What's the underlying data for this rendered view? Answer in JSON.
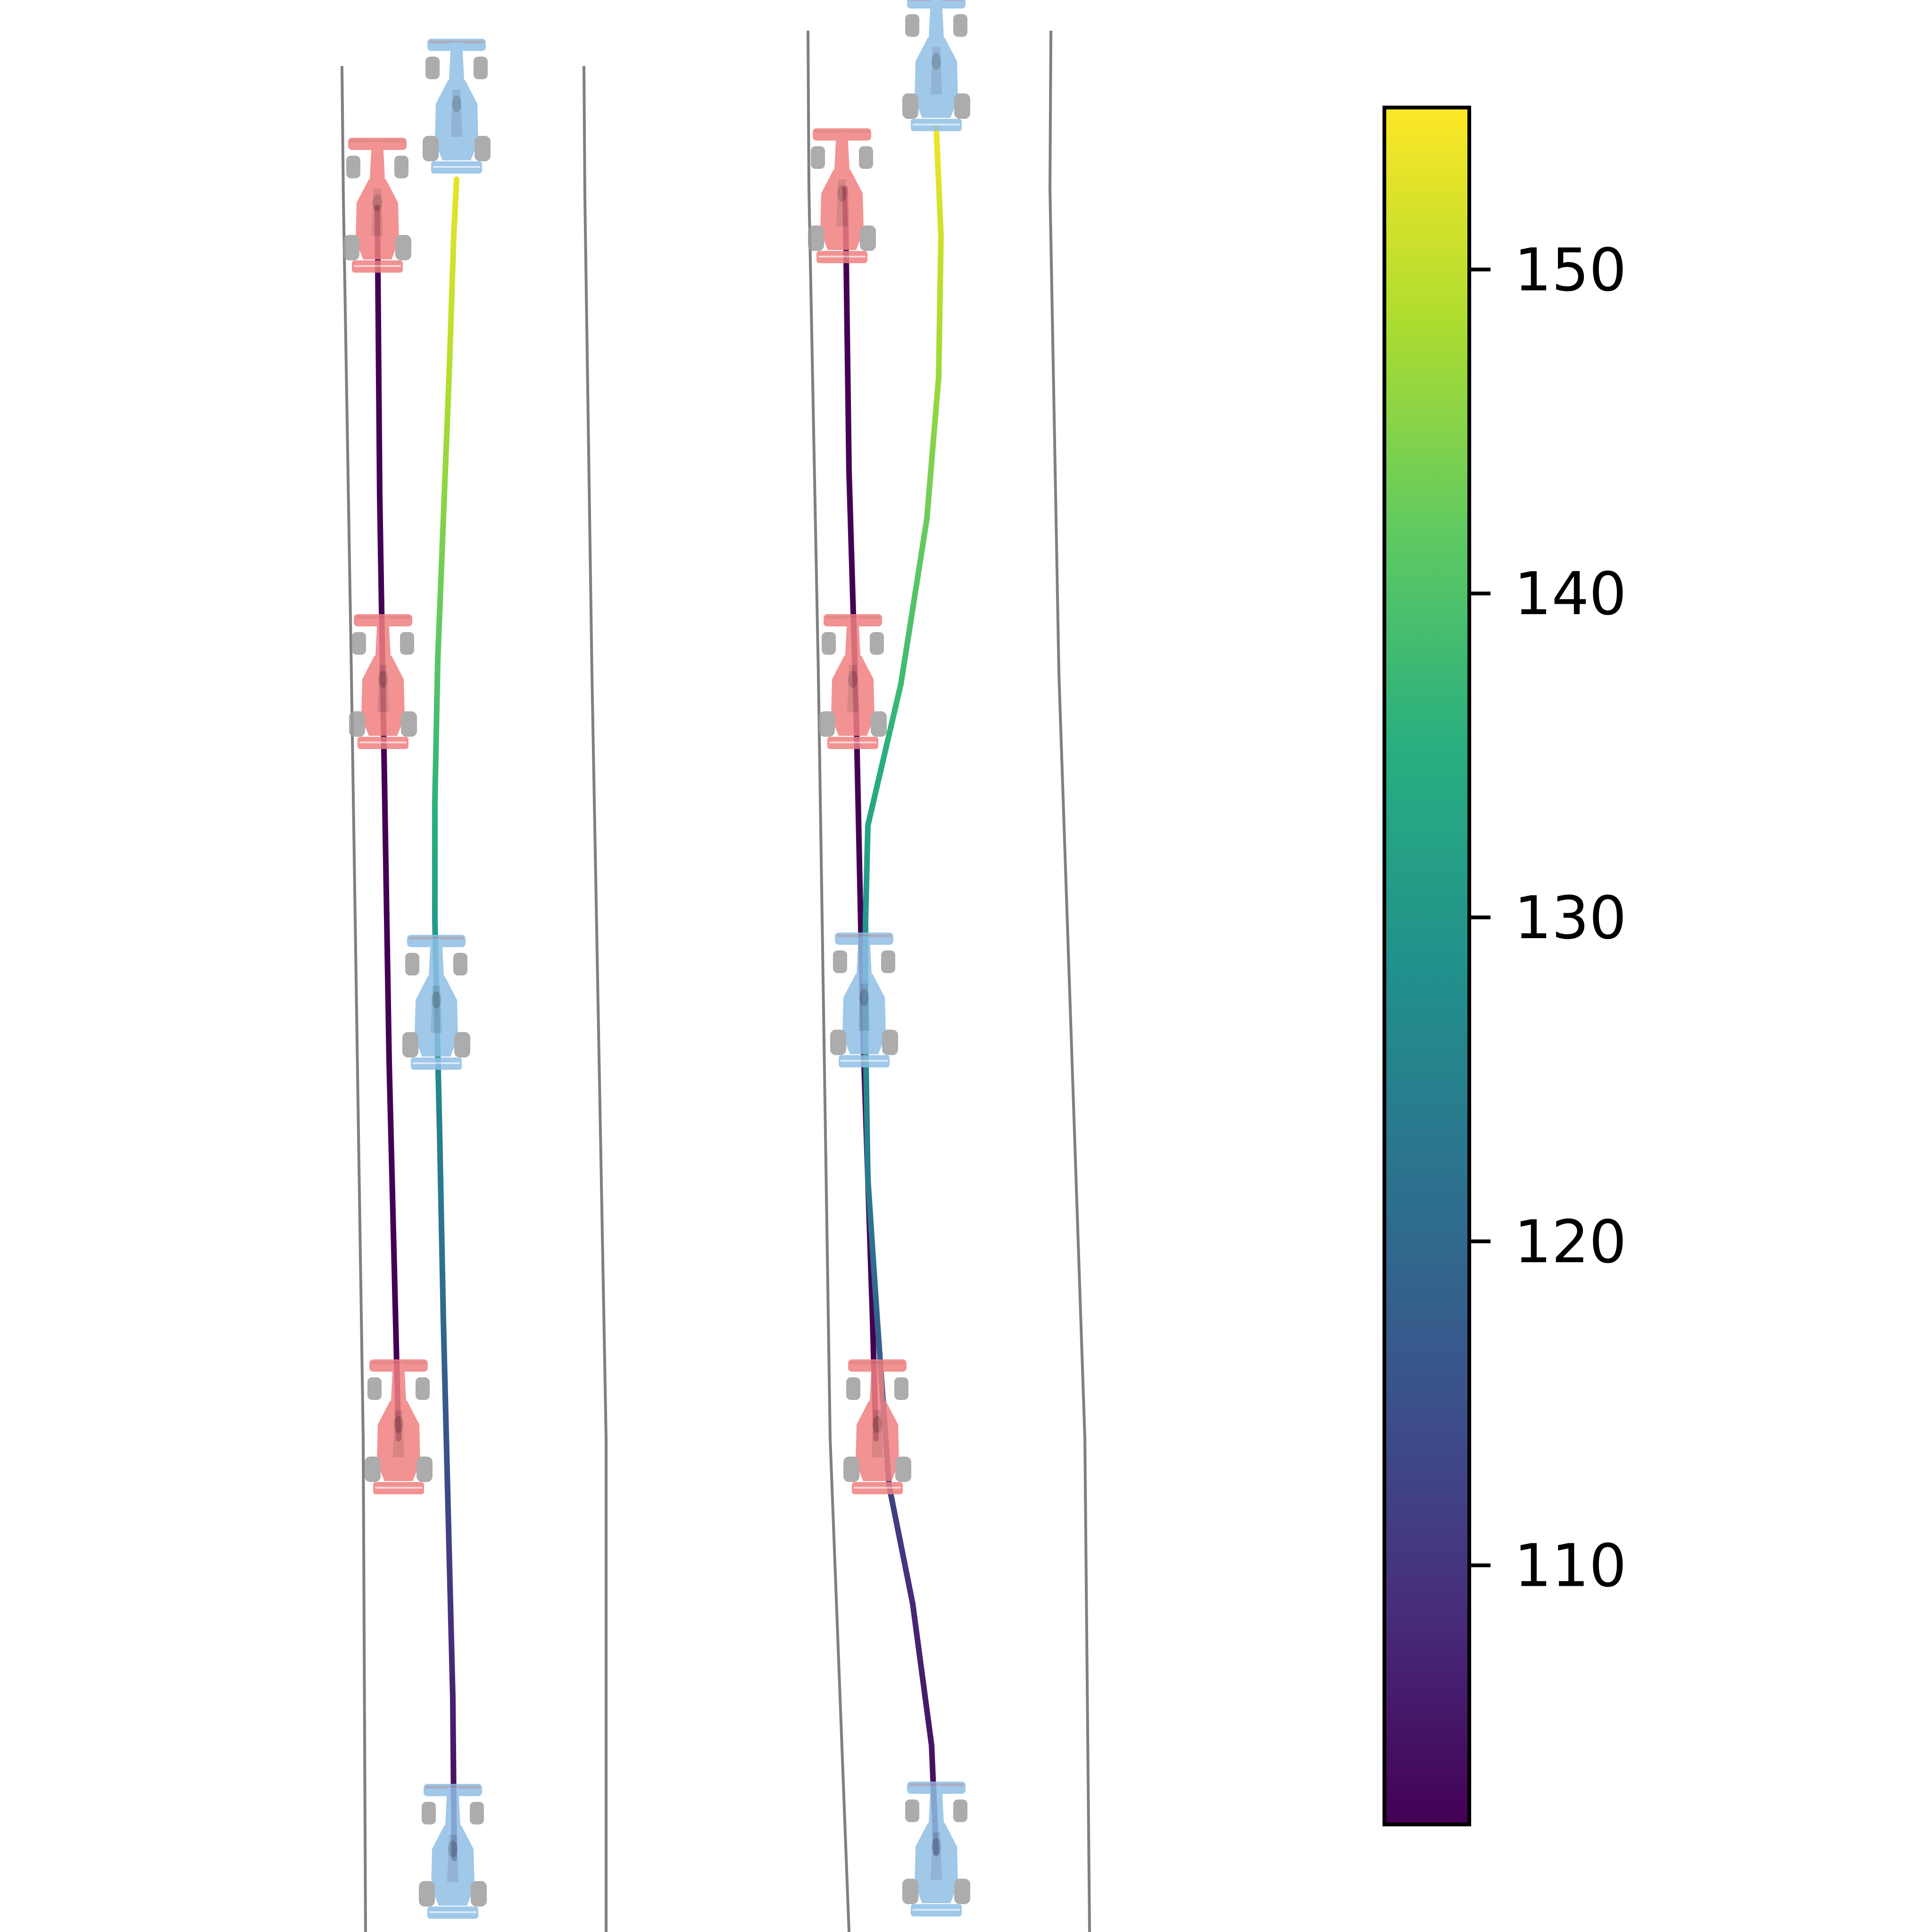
{
  "chart_data": {
    "type": "line",
    "panels": [
      {
        "name": "left",
        "description_free": true,
        "track": {
          "left_boundary": [
            [
              725,
              140
            ],
            [
              728,
              420
            ],
            [
              745,
              1430
            ],
            [
              770,
              3050
            ],
            [
              775,
              4096
            ]
          ],
          "right_boundary": [
            [
              1238,
              140
            ],
            [
              1240,
              420
            ],
            [
              1255,
              1430
            ],
            [
              1285,
              3050
            ],
            [
              1285,
              4096
            ]
          ]
        },
        "series": [
          {
            "car": "red",
            "points": [
              [
                800,
                440,
                102
              ],
              [
                805,
                1050,
                102
              ],
              [
                810,
                1350,
                102
              ],
              [
                825,
                2250,
                102
              ],
              [
                845,
                3050,
                102
              ]
            ],
            "car_positions": [
              [
                800,
                440
              ],
              [
                812,
                1450
              ],
              [
                845,
                3030
              ]
            ]
          },
          {
            "car": "blue",
            "points": [
              [
                968,
                380,
                153
              ],
              [
                962,
                500,
                152
              ],
              [
                952,
                800,
                149
              ],
              [
                940,
                1100,
                145
              ],
              [
                928,
                1400,
                141
              ],
              [
                922,
                1700,
                136
              ],
              [
                922,
                1950,
                131
              ],
              [
                925,
                2100,
                129
              ],
              [
                932,
                2400,
                125
              ],
              [
                940,
                2800,
                120
              ],
              [
                950,
                3200,
                113
              ],
              [
                960,
                3600,
                107
              ],
              [
                963,
                3940,
                103
              ]
            ],
            "car_positions": [
              [
                968,
                230
              ],
              [
                925,
                2130
              ],
              [
                960,
                3930
              ]
            ]
          }
        ]
      },
      {
        "name": "right",
        "track": {
          "left_boundary": [
            [
              1713,
              65
            ],
            [
              1715,
              400
            ],
            [
              1735,
              1430
            ],
            [
              1760,
              3050
            ],
            [
              1800,
              4096
            ]
          ],
          "right_boundary": [
            [
              2228,
              65
            ],
            [
              2226,
              400
            ],
            [
              2245,
              1430
            ],
            [
              2300,
              3050
            ],
            [
              2310,
              4096
            ]
          ]
        },
        "series": [
          {
            "car": "red",
            "points": [
              [
                1792,
                400,
                102
              ],
              [
                1800,
                1000,
                102
              ],
              [
                1815,
                1500,
                102
              ],
              [
                1830,
                2200,
                102
              ],
              [
                1850,
                2800,
                102
              ],
              [
                1857,
                3050,
                102
              ]
            ],
            "car_positions": [
              [
                1785,
                420
              ],
              [
                1808,
                1450
              ],
              [
                1860,
                3030
              ]
            ]
          },
          {
            "car": "blue",
            "points": [
              [
                1985,
                270,
                154
              ],
              [
                1995,
                500,
                151
              ],
              [
                1990,
                800,
                147
              ],
              [
                1965,
                1100,
                143
              ],
              [
                1910,
                1450,
                138
              ],
              [
                1840,
                1750,
                133
              ],
              [
                1835,
                1950,
                130
              ],
              [
                1835,
                2200,
                127
              ],
              [
                1840,
                2500,
                124
              ],
              [
                1860,
                2800,
                119
              ],
              [
                1885,
                3150,
                113
              ],
              [
                1935,
                3400,
                108
              ],
              [
                1975,
                3700,
                105
              ],
              [
                1985,
                3930,
                103
              ]
            ],
            "car_positions": [
              [
                1985,
                140
              ],
              [
                1832,
                2125
              ],
              [
                1985,
                3925
              ]
            ]
          }
        ]
      }
    ],
    "colorbar": {
      "vmin": 102,
      "vmax": 155,
      "ticks": [
        110,
        120,
        130,
        140,
        150
      ],
      "colormap": "viridis"
    },
    "xlabel": "",
    "ylabel": "",
    "title": ""
  },
  "colors": {
    "track_line": "#808080",
    "red_car": "#f08080",
    "blue_car": "#8fbfe6",
    "tyre": "#9e9e9e"
  }
}
